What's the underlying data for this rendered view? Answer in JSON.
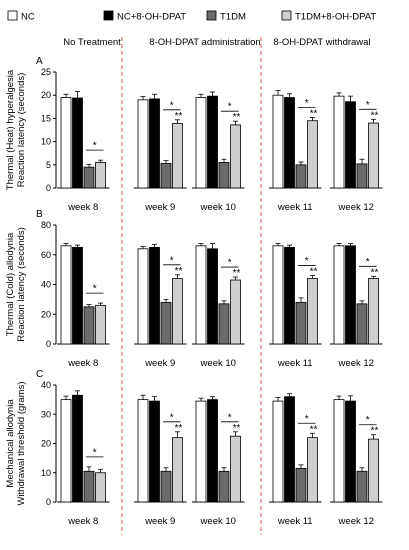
{
  "legend": [
    {
      "label": "NC",
      "color": "#ffffff"
    },
    {
      "label": "NC+8-OH-DPAT",
      "color": "#000000"
    },
    {
      "label": "T1DM",
      "color": "#6b6b6b"
    },
    {
      "label": "T1DM+8-OH-DPAT",
      "color": "#cfcfcf"
    }
  ],
  "phases": [
    "No Treatment",
    "8-OH-DPAT administration",
    "8-OH-DPAT withdrawal"
  ],
  "colors": {
    "nc": "#ffffff",
    "nc_dpat": "#000000",
    "t1dm": "#6b6b6b",
    "t1dm_dpat": "#cfcfcf",
    "divider": "#d9534f"
  },
  "chart_data": [
    {
      "type": "bar",
      "panel_label": "A",
      "ylabel": [
        "Thermal (Heat)  hyperalgesia",
        "Reaction latency (seconds)"
      ],
      "ylim": [
        0,
        25
      ],
      "yticks": [
        0,
        5,
        10,
        15,
        20,
        25
      ],
      "categories": [
        "week 8",
        "week 9",
        "week 10",
        "week 11",
        "week 12"
      ],
      "series": [
        {
          "name": "NC",
          "values": [
            19.5,
            19.0,
            19.5,
            20.0,
            19.8
          ],
          "errors": [
            0.7,
            0.7,
            0.7,
            1.0,
            0.7
          ]
        },
        {
          "name": "NC+8-OH-DPAT",
          "values": [
            19.4,
            19.2,
            19.8,
            19.5,
            18.6
          ],
          "errors": [
            1.4,
            1.0,
            0.9,
            0.8,
            1.2
          ]
        },
        {
          "name": "T1DM",
          "values": [
            4.5,
            5.3,
            5.5,
            5.0,
            5.2
          ],
          "errors": [
            0.6,
            0.6,
            0.7,
            0.6,
            1.0
          ]
        },
        {
          "name": "T1DM+8-OH-DPAT",
          "values": [
            5.5,
            13.9,
            13.6,
            14.5,
            14.0
          ],
          "errors": [
            0.5,
            0.8,
            0.8,
            0.7,
            0.8
          ]
        }
      ],
      "annotations": [
        {
          "week": 0,
          "marks": [
            "*"
          ]
        },
        {
          "week": 1,
          "marks": [
            "*",
            "**"
          ]
        },
        {
          "week": 2,
          "marks": [
            "*",
            "**"
          ]
        },
        {
          "week": 3,
          "marks": [
            "*",
            "**"
          ]
        },
        {
          "week": 4,
          "marks": [
            "*",
            "**"
          ]
        }
      ]
    },
    {
      "type": "bar",
      "panel_label": "B",
      "ylabel": [
        "Thermal (Cold) allodynia",
        "Reaction latency (seconds)"
      ],
      "ylim": [
        0,
        80
      ],
      "yticks": [
        0,
        20,
        40,
        60,
        80
      ],
      "categories": [
        "week 8",
        "week 9",
        "week 10",
        "week 11",
        "week 12"
      ],
      "series": [
        {
          "name": "NC",
          "values": [
            66,
            64,
            66,
            66,
            66
          ],
          "errors": [
            1.5,
            1.5,
            1.5,
            1.5,
            1.5
          ]
        },
        {
          "name": "NC+8-OH-DPAT",
          "values": [
            65,
            65,
            64,
            65,
            66
          ],
          "errors": [
            1.5,
            2,
            3.5,
            1.5,
            1.5
          ]
        },
        {
          "name": "T1DM",
          "values": [
            25,
            28,
            27,
            28,
            27
          ],
          "errors": [
            1.5,
            2,
            2,
            3,
            2
          ]
        },
        {
          "name": "T1DM+8-OH-DPAT",
          "values": [
            26,
            44,
            43,
            44,
            44
          ],
          "errors": [
            1.5,
            2.5,
            2,
            2,
            1.5
          ]
        }
      ],
      "annotations": [
        {
          "week": 0,
          "marks": [
            "*"
          ]
        },
        {
          "week": 1,
          "marks": [
            "*",
            "**"
          ]
        },
        {
          "week": 2,
          "marks": [
            "*",
            "**"
          ]
        },
        {
          "week": 3,
          "marks": [
            "*",
            "**"
          ]
        },
        {
          "week": 4,
          "marks": [
            "*",
            "**"
          ]
        }
      ]
    },
    {
      "type": "bar",
      "panel_label": "C",
      "ylabel": [
        "Mechanical allodynia",
        "Withdrawal threshold (grams)"
      ],
      "ylim": [
        0,
        40
      ],
      "yticks": [
        0,
        10,
        20,
        30,
        40
      ],
      "categories": [
        "week 8",
        "week 9",
        "week 10",
        "week 11",
        "week 12"
      ],
      "series": [
        {
          "name": "NC",
          "values": [
            35,
            35,
            34.5,
            34.5,
            35
          ],
          "errors": [
            1.2,
            1.5,
            1.0,
            1.2,
            1.2
          ]
        },
        {
          "name": "NC+8-OH-DPAT",
          "values": [
            36.5,
            34.5,
            35,
            36,
            34.5
          ],
          "errors": [
            1.5,
            1.5,
            1.0,
            1.0,
            1.8
          ]
        },
        {
          "name": "T1DM",
          "values": [
            10.5,
            10.5,
            10.5,
            11.5,
            10.5
          ],
          "errors": [
            1.5,
            1.2,
            1.2,
            1.2,
            1.2
          ]
        },
        {
          "name": "T1DM+8-OH-DPAT",
          "values": [
            10,
            22,
            22.5,
            22,
            21.5
          ],
          "errors": [
            1.2,
            2.0,
            1.5,
            1.5,
            1.5
          ]
        }
      ],
      "annotations": [
        {
          "week": 0,
          "marks": [
            "*"
          ]
        },
        {
          "week": 1,
          "marks": [
            "*",
            "**"
          ]
        },
        {
          "week": 2,
          "marks": [
            "*",
            "**"
          ]
        },
        {
          "week": 3,
          "marks": [
            "*",
            "**"
          ]
        },
        {
          "week": 4,
          "marks": [
            "*",
            "**"
          ]
        }
      ]
    }
  ]
}
